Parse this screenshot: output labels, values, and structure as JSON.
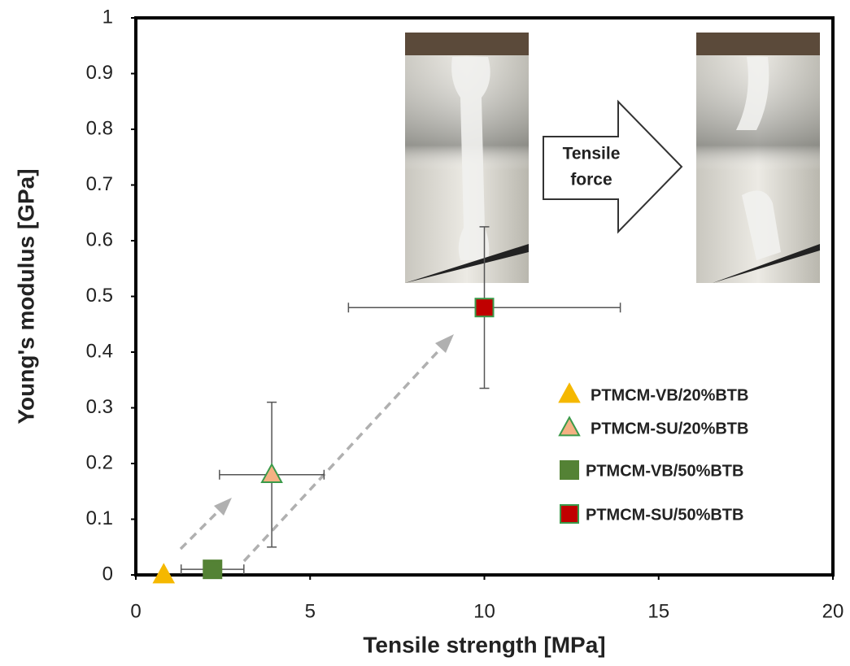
{
  "chart_data": {
    "type": "scatter",
    "xlabel": "Tensile strength [MPa]",
    "ylabel": "Young's modulus [GPa]",
    "xlim": [
      0,
      20
    ],
    "ylim": [
      0,
      1
    ],
    "xticks": [
      0,
      5,
      10,
      15,
      20
    ],
    "yticks": [
      0,
      0.1,
      0.2,
      0.3,
      0.4,
      0.5,
      0.6,
      0.7,
      0.8,
      0.9,
      1
    ],
    "legend": "right",
    "annotation_lines": [
      "Tensile",
      "force"
    ],
    "series": [
      {
        "name": "PTMCM-VB/20%BTB",
        "marker": "triangle",
        "color": "#f5b800",
        "edgecolor": "#f5b800",
        "x": [
          0.8
        ],
        "values": [
          0
        ]
      },
      {
        "name": "PTMCM-SU/20%BTB",
        "marker": "triangle",
        "color": "#f4b183",
        "edgecolor": "#3a9a4a",
        "x": [
          3.9
        ],
        "values": [
          0.18
        ],
        "xerr": [
          1.5
        ],
        "yerr": [
          0.13
        ]
      },
      {
        "name": "PTMCM-VB/50%BTB",
        "marker": "square",
        "color": "#548235",
        "edgecolor": "#548235",
        "x": [
          2.2
        ],
        "values": [
          0.01
        ],
        "xerr": [
          0.9
        ]
      },
      {
        "name": "PTMCM-SU/50%BTB",
        "marker": "square",
        "color": "#c00000",
        "edgecolor": "#3a9a4a",
        "x": [
          10
        ],
        "values": [
          0.48
        ],
        "xerr": [
          3.9
        ],
        "yerr": [
          0.145
        ]
      }
    ]
  }
}
